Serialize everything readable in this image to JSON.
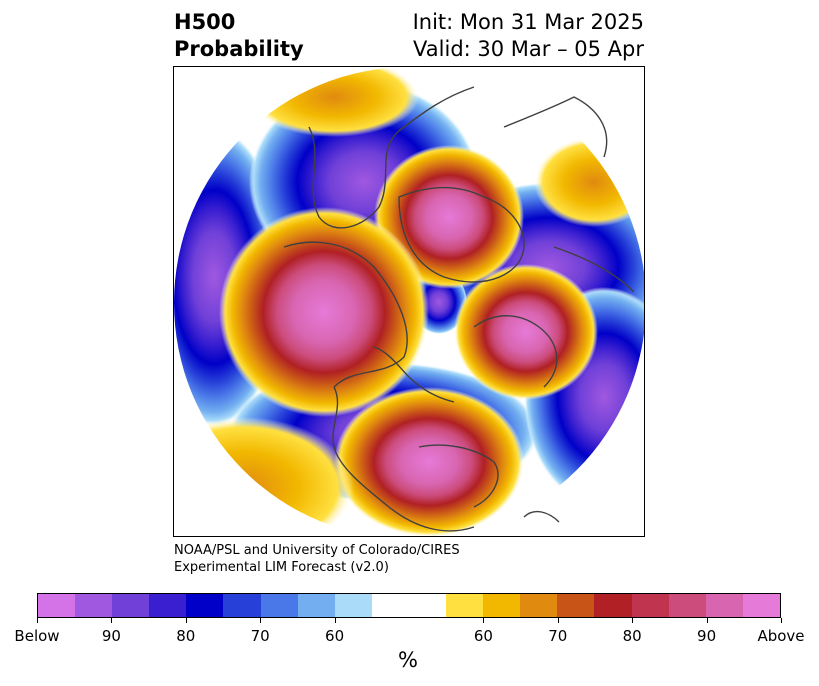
{
  "header": {
    "title_line1": "H500",
    "title_line2": "Probability",
    "init": "Init: Mon 31 Mar 2025",
    "valid": "Valid: 30 Mar – 05 Apr"
  },
  "map": {
    "projection": "north-polar-stereographic",
    "anomalies": [
      {
        "region": "north-pacific",
        "sign": "below"
      },
      {
        "region": "alaska-bering",
        "sign": "above"
      },
      {
        "region": "central-siberia",
        "sign": "above"
      },
      {
        "region": "western-europe",
        "sign": "above"
      },
      {
        "region": "eastern-north-america",
        "sign": "above"
      },
      {
        "region": "western-north-america",
        "sign": "below"
      },
      {
        "region": "north-atlantic",
        "sign": "below"
      },
      {
        "region": "central-asia",
        "sign": "below"
      }
    ]
  },
  "credit": {
    "line1": "NOAA/PSL and University of Colorado/CIRES",
    "line2": "Experimental LIM Forecast (v2.0)"
  },
  "colorbar": {
    "colors_below": [
      "#d473e8",
      "#a058e0",
      "#7040d8",
      "#3a1fd0",
      "#0000c8",
      "#2640d8",
      "#4a78e8",
      "#72aef0",
      "#aadcfa"
    ],
    "color_neutral": "#ffffff",
    "colors_above": [
      "#ffe040",
      "#f2b800",
      "#e08a10",
      "#c85418",
      "#b02024",
      "#c03450",
      "#cc4c7c",
      "#d865b0",
      "#e67ad8"
    ],
    "tick_labels": [
      "Below",
      "90",
      "80",
      "70",
      "60",
      "60",
      "70",
      "80",
      "90",
      "Above"
    ],
    "unit": "%"
  }
}
